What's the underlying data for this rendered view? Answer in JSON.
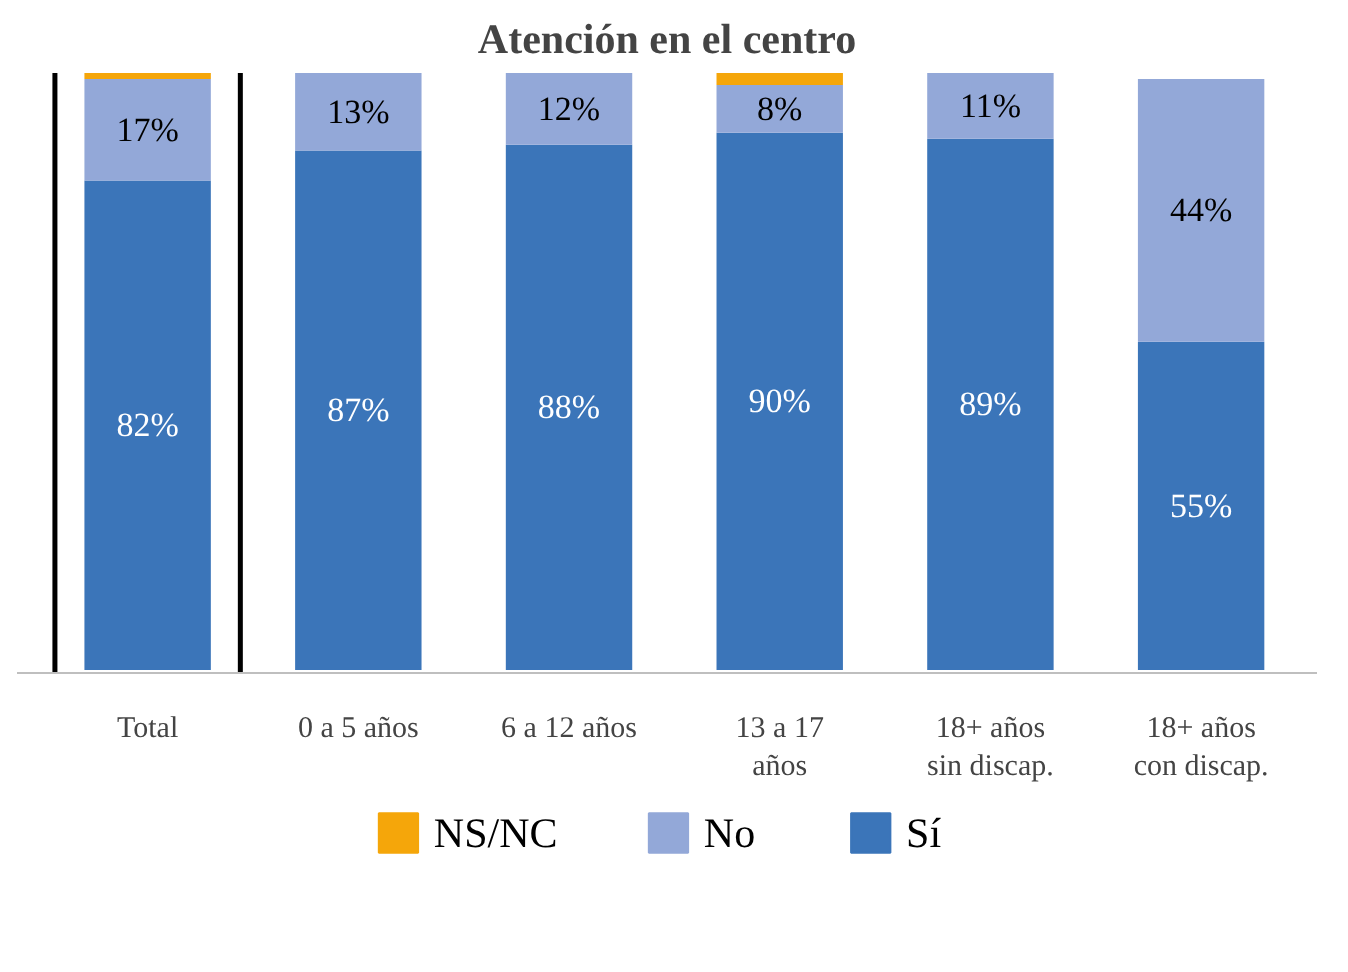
{
  "chart_data": {
    "type": "bar",
    "title": "Atención en el centro",
    "stacked": true,
    "legend": "bottom",
    "categories": [
      "Total",
      "0 a 5 años",
      "6 a 12 años",
      "13 a 17 años",
      "18+ años sin discap.",
      "18+ años con discap."
    ],
    "series": [
      {
        "name": "Sí",
        "color": "#3b75b9",
        "values": [
          82,
          87,
          88,
          90,
          89,
          55
        ],
        "value_labels": [
          "82%",
          "87%",
          "88%",
          "90%",
          "89%",
          "55%"
        ]
      },
      {
        "name": "No",
        "color": "#93a8d8",
        "values": [
          17,
          13,
          12,
          8,
          11,
          44
        ],
        "value_labels": [
          "17%",
          "13%",
          "12%",
          "8%",
          "11%",
          "44%"
        ]
      },
      {
        "name": "NS/NC",
        "color": "#f5a60a",
        "values": [
          1,
          0,
          0,
          2,
          0,
          0
        ],
        "value_labels": [
          null,
          null,
          null,
          null,
          null,
          null
        ]
      }
    ]
  }
}
